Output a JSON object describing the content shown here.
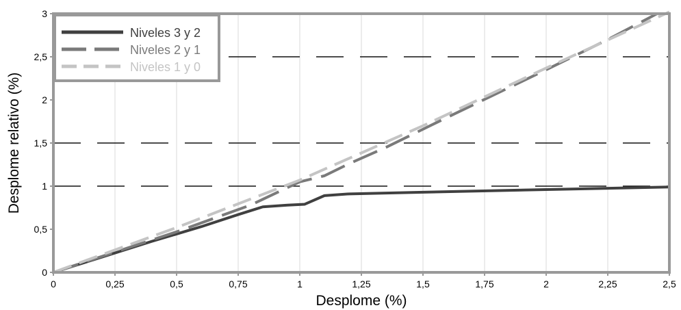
{
  "chart_data": {
    "type": "line",
    "xlabel": "Desplome (%)",
    "ylabel": "Desplome relativo (%)",
    "xlim": [
      0,
      2.5
    ],
    "ylim": [
      0,
      3
    ],
    "x_ticks": [
      "0",
      "0,25",
      "0,5",
      "0,75",
      "1",
      "1,25",
      "1,5",
      "1,75",
      "2",
      "2,25",
      "2,5"
    ],
    "y_ticks": [
      "0",
      "0,5",
      "1",
      "1,5",
      "2",
      "2,5",
      "3"
    ],
    "reference_lines": [
      1,
      1.5,
      2.5
    ],
    "legend_position": "top-left",
    "series": [
      {
        "name": "Niveles 3 y 2",
        "color": "#404040",
        "style": "solid",
        "points": [
          [
            0,
            0
          ],
          [
            0.2,
            0.18
          ],
          [
            0.4,
            0.36
          ],
          [
            0.6,
            0.53
          ],
          [
            0.75,
            0.67
          ],
          [
            0.85,
            0.76
          ],
          [
            0.95,
            0.78
          ],
          [
            1.02,
            0.79
          ],
          [
            1.1,
            0.89
          ],
          [
            1.2,
            0.91
          ],
          [
            1.5,
            0.93
          ],
          [
            2.0,
            0.96
          ],
          [
            2.5,
            0.99
          ]
        ]
      },
      {
        "name": "Niveles 2 y 1",
        "color": "#7a7a7a",
        "style": "dashed",
        "points": [
          [
            0,
            0
          ],
          [
            0.5,
            0.47
          ],
          [
            0.8,
            0.78
          ],
          [
            1.0,
            1.05
          ],
          [
            1.1,
            1.12
          ],
          [
            1.2,
            1.26
          ],
          [
            1.35,
            1.45
          ],
          [
            1.6,
            1.8
          ],
          [
            2.0,
            2.35
          ],
          [
            2.25,
            2.7
          ],
          [
            2.45,
            3.0
          ]
        ]
      },
      {
        "name": "Niveles 1 y 0",
        "color": "#c4c4c4",
        "style": "dashed",
        "points": [
          [
            0,
            0
          ],
          [
            0.5,
            0.52
          ],
          [
            1.0,
            1.07
          ],
          [
            1.5,
            1.7
          ],
          [
            2.0,
            2.37
          ],
          [
            2.5,
            3.02
          ]
        ]
      }
    ]
  }
}
